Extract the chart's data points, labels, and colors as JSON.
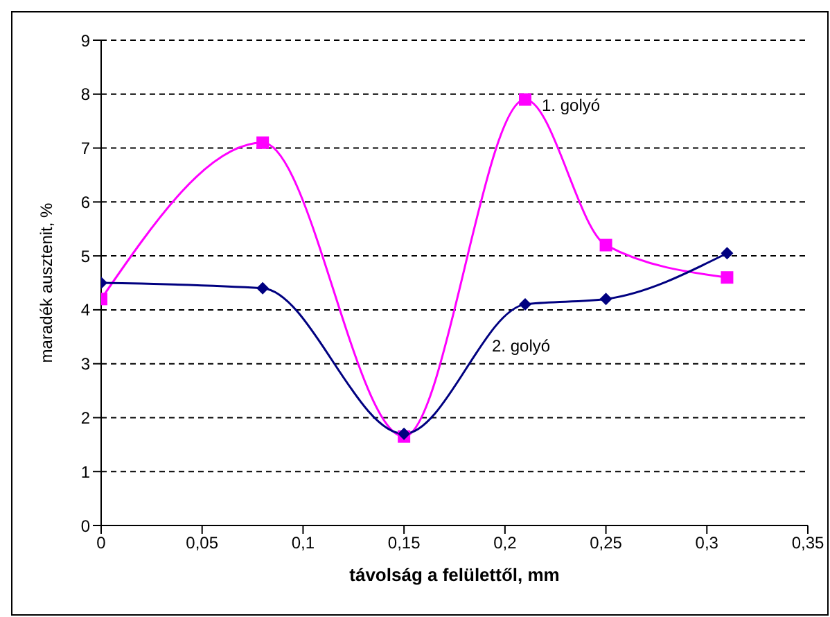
{
  "chart_data": {
    "type": "line",
    "xlabel": "távolság a felülettől, mm",
    "ylabel": "maradék ausztenit, %",
    "x": [
      0,
      0.08,
      0.15,
      0.21,
      0.25,
      0.31
    ],
    "series": [
      {
        "name": "1. golyó",
        "color": "#ff00ff",
        "marker": "square",
        "values": [
          4.2,
          7.1,
          1.65,
          7.9,
          5.2,
          4.6
        ]
      },
      {
        "name": "2. golyó",
        "color": "#000080",
        "marker": "diamond",
        "values": [
          4.5,
          4.4,
          1.7,
          4.1,
          4.2,
          5.05
        ]
      }
    ],
    "xlim": [
      0,
      0.35
    ],
    "xticks": [
      0,
      {
        "value": 0.05,
        "label": "0,05"
      },
      {
        "value": 0.1,
        "label": "0,1"
      },
      {
        "value": 0.15,
        "label": "0,15"
      },
      {
        "value": 0.2,
        "label": "0,2"
      },
      {
        "value": 0.25,
        "label": "0,25"
      },
      {
        "value": 0.3,
        "label": "0,3"
      },
      {
        "value": 0.35,
        "label": "0,35"
      }
    ],
    "ylim": [
      0,
      9
    ],
    "yticks": [
      0,
      1,
      2,
      3,
      4,
      5,
      6,
      7,
      8,
      9
    ],
    "grid": "y"
  }
}
